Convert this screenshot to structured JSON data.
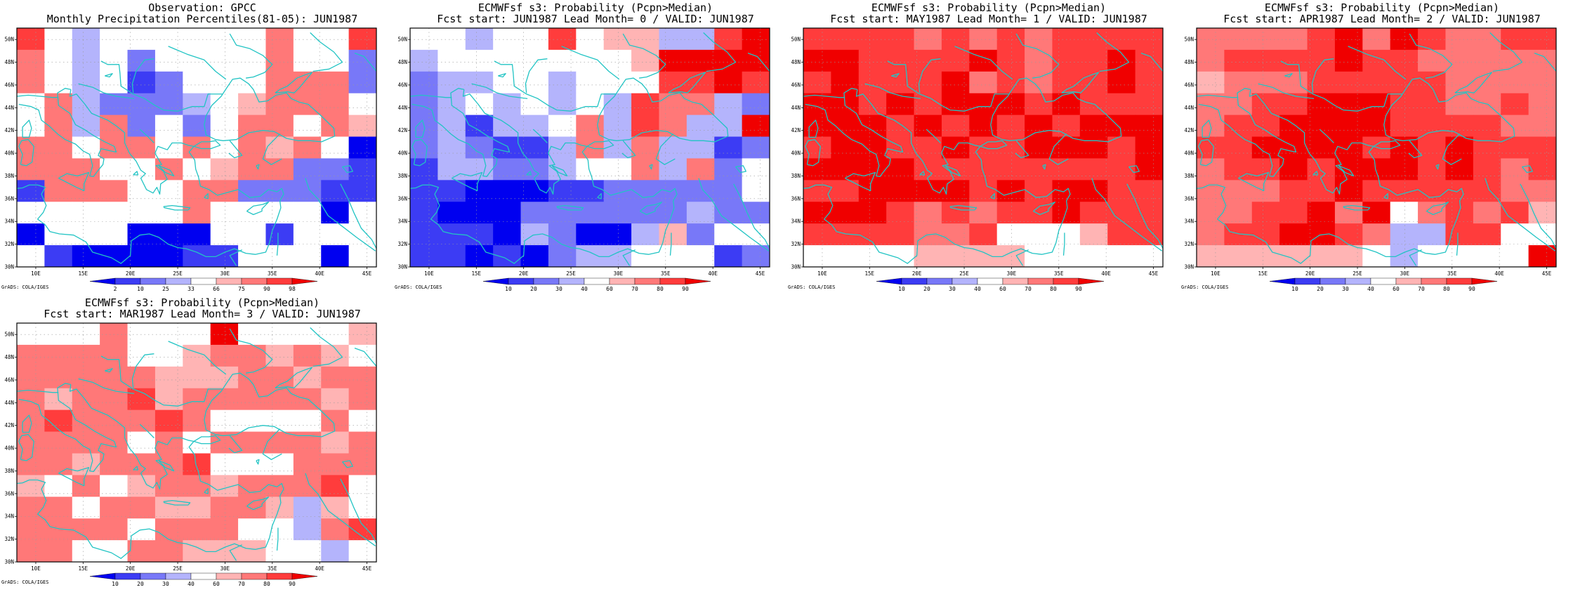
{
  "credit": "GrADS: COLA/IGES",
  "map_extent": {
    "lon": [
      8,
      46
    ],
    "lat": [
      30,
      51
    ]
  },
  "lon_ticks": [
    "10E",
    "15E",
    "20E",
    "25E",
    "30E",
    "35E",
    "40E",
    "45E"
  ],
  "lat_ticks": [
    "30N",
    "32N",
    "34N",
    "36N",
    "38N",
    "40N",
    "42N",
    "44N",
    "46N",
    "48N",
    "50N"
  ],
  "cell_size_deg": 2.5,
  "panels": [
    {
      "id": "observation",
      "title1": "Observation: GPCC",
      "title2": "Monthly Precipitation Percentiles(81-05): JUN1987",
      "colorbar": {
        "labels": [
          "2",
          "10",
          "25",
          "33",
          "66",
          "75",
          "90",
          "98"
        ],
        "colors": [
          "#0000f0",
          "#3c3cf4",
          "#7878f8",
          "#b4b4fc",
          "#ffffff",
          "#ffb4b4",
          "#ff7878",
          "#ff3c3c",
          "#f00000"
        ]
      },
      "grid": [
        "7434444446447",
        "6434244446442",
        "6434124446662",
        "4632223456664",
        "4636242466465",
        "6646646465640",
        "6664464566221",
        "1666446622211",
        "4444446444404",
        "0444000441444",
        "4100001144404"
      ]
    },
    {
      "id": "lead0",
      "title1": "ECMWFsf s3: Probability (Pcpn>Median)",
      "title2": "Fcst start: JUN1987  Lead Month= 0 / VALID: JUN1987",
      "colorbar": {
        "labels": [
          "10",
          "20",
          "30",
          "40",
          "60",
          "70",
          "80",
          "90"
        ],
        "colors": [
          "#0000f0",
          "#3c3cf4",
          "#7878f8",
          "#b4b4fc",
          "#ffffff",
          "#ffb4b4",
          "#ff7878",
          "#ff3c3c",
          "#f00000"
        ]
      },
      "grid": [
        "4434474553378",
        "3444444458888",
        "2334434447787",
        "2343434376632",
        "2313346376338",
        "2321136363312",
        "1332234463624",
        "1100011222224",
        "1000222222322",
        "1110320035244",
        "1101023344412"
      ]
    },
    {
      "id": "lead1",
      "title1": "ECMWFsf s3: Probability (Pcpn>Median)",
      "title2": "Fcst start: MAY1987  Lead Month= 1 / VALID: JUN1987",
      "colorbar": {
        "labels": [
          "10",
          "20",
          "30",
          "40",
          "60",
          "70",
          "80",
          "90"
        ],
        "colors": [
          "#0000f0",
          "#3c3cf4",
          "#7878f8",
          "#b4b4fc",
          "#ffffff",
          "#ffb4b4",
          "#ff7878",
          "#ff3c3c",
          "#f00000"
        ]
      },
      "grid": [
        "7777676767777",
        "8877778767787",
        "7877786767787",
        "8878788878777",
        "8887878787888",
        "7887787788878",
        "8888777777778",
        "7788887878877",
        "8887676778777",
        "7777667444577",
        "4444555544444"
      ]
    },
    {
      "id": "lead2",
      "title1": "ECMWFsf s3: Probability (Pcpn>Median)",
      "title2": "Fcst start: APR1987  Lead Month= 2 / VALID: JUN1987",
      "colorbar": {
        "labels": [
          "10",
          "20",
          "30",
          "40",
          "60",
          "70",
          "80",
          "90"
        ],
        "colors": [
          "#0000f0",
          "#3c3cf4",
          "#7878f8",
          "#b4b4fc",
          "#ffffff",
          "#ffb4b4",
          "#ff7878",
          "#ff3c3c",
          "#f00000"
        ]
      },
      "grid": [
        "6666786876677",
        "6777787766666",
        "5666777776666",
        "6677888776676",
        "6778888777766",
        "7788887878777",
        "6778788878767",
        "6667787777766",
        "6677868467675",
        "6778876337744",
        "5555554344448"
      ]
    },
    {
      "id": "lead3",
      "title1": "ECMWFsf s3: Probability (Pcpn>Median)",
      "title2": "Fcst start: MAR1987  Lead Month= 3 / VALID: JUN1987",
      "colorbar": {
        "labels": [
          "10",
          "20",
          "30",
          "40",
          "60",
          "70",
          "80",
          "90"
        ],
        "colors": [
          "#0000f0",
          "#3c3cf4",
          "#7878f8",
          "#b4b4fc",
          "#ffffff",
          "#ffb4b4",
          "#ff7878",
          "#ff3c3c",
          "#f00000"
        ]
      },
      "grid": [
        "4446444844445",
        "6666445665654",
        "6666655566566",
        "6566756666656",
        "6766676444464",
        "6666464666656",
        "6656667444666",
        "5464566566674",
        "6646655665354",
        "6666466644367",
        "6644665554434"
      ]
    }
  ]
}
